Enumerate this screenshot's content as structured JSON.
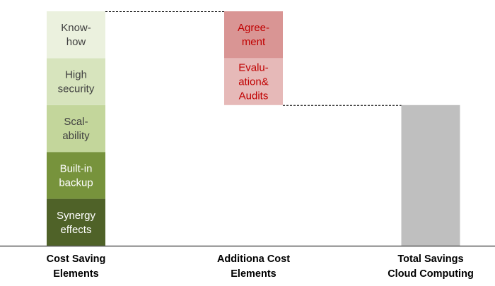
{
  "chart_data": {
    "type": "bar",
    "subtype": "stacked-waterfall",
    "grid": false,
    "legend": "none",
    "ylim": [
      0,
      10
    ],
    "connector_style": "dashed",
    "colors": {
      "connector": "#000000",
      "baseline": "#595959",
      "total": "#bfbfbf"
    },
    "categories": [
      {
        "label_lines": [
          "Cost Saving",
          "Elements"
        ],
        "mode": "stack-up",
        "segments": [
          {
            "label_lines": [
              "Synergy",
              "effects"
            ],
            "value": 2,
            "color": "#4f6228",
            "text_color": "#ffffff"
          },
          {
            "label_lines": [
              "Built-in",
              "backup"
            ],
            "value": 2,
            "color": "#77933c",
            "text_color": "#ffffff"
          },
          {
            "label_lines": [
              "Scal-",
              "ability"
            ],
            "value": 2,
            "color": "#c3d69b",
            "text_color": "#404040"
          },
          {
            "label_lines": [
              "High",
              "security"
            ],
            "value": 2,
            "color": "#d7e4bd",
            "text_color": "#404040"
          },
          {
            "label_lines": [
              "Know-",
              "how"
            ],
            "value": 2,
            "color": "#ebf1de",
            "text_color": "#404040"
          }
        ]
      },
      {
        "label_lines": [
          "Additiona Cost",
          "Elements"
        ],
        "mode": "stack-down",
        "segments": [
          {
            "label_lines": [
              "Agree-",
              "ment"
            ],
            "value": 2,
            "color": "#d99594",
            "text_color": "#c00000"
          },
          {
            "label_lines": [
              "Evalu-",
              "ation&",
              "Audits"
            ],
            "value": 2,
            "color": "#e6b9b8",
            "text_color": "#c00000"
          }
        ]
      },
      {
        "label_lines": [
          "Total Savings",
          "Cloud Computing"
        ],
        "mode": "total",
        "value": 6,
        "segments": []
      }
    ]
  }
}
